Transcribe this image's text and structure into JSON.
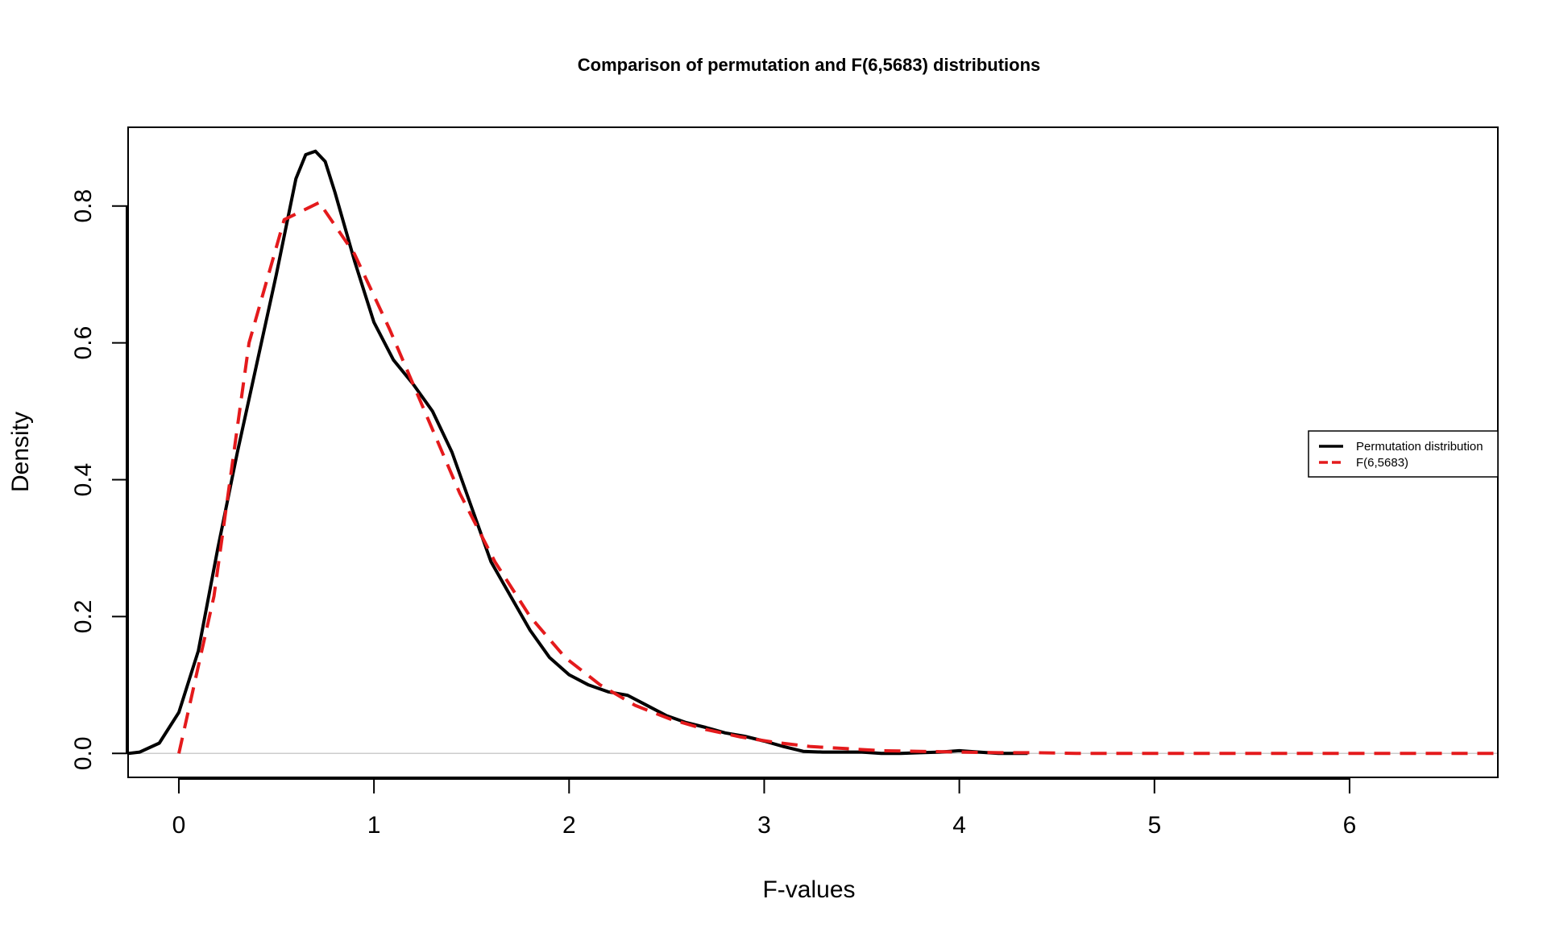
{
  "chart_data": {
    "type": "line",
    "title": "Comparison of permutation and F(6,5683) distributions",
    "xlabel": "F-values",
    "ylabel": "Density",
    "xlim": [
      -0.26,
      6.76
    ],
    "ylim": [
      -0.035,
      0.915
    ],
    "xticks": [
      0,
      1,
      2,
      3,
      4,
      5,
      6
    ],
    "xtick_labels": [
      "0",
      "1",
      "2",
      "3",
      "4",
      "5",
      "6"
    ],
    "yticks": [
      0.0,
      0.2,
      0.4,
      0.6,
      0.8
    ],
    "ytick_labels": [
      "0.0",
      "0.2",
      "0.4",
      "0.6",
      "0.8"
    ],
    "grid": false,
    "baseline": 0,
    "legend_position": "right",
    "series": [
      {
        "name": "Permutation distribution",
        "color": "#000000",
        "dash": "solid",
        "x": [
          -0.26,
          -0.2,
          -0.1,
          0,
          0.1,
          0.2,
          0.3,
          0.4,
          0.5,
          0.6,
          0.65,
          0.7,
          0.75,
          0.8,
          0.9,
          1.0,
          1.1,
          1.2,
          1.3,
          1.4,
          1.5,
          1.6,
          1.7,
          1.8,
          1.9,
          2.0,
          2.1,
          2.2,
          2.3,
          2.4,
          2.5,
          2.6,
          2.7,
          2.8,
          2.9,
          3.0,
          3.1,
          3.2,
          3.3,
          3.4,
          3.5,
          3.6,
          3.7,
          3.8,
          3.9,
          4.0,
          4.1,
          4.2,
          4.3,
          4.35
        ],
        "y": [
          0.0,
          0.002,
          0.015,
          0.06,
          0.15,
          0.3,
          0.44,
          0.57,
          0.7,
          0.84,
          0.875,
          0.88,
          0.865,
          0.82,
          0.72,
          0.63,
          0.575,
          0.54,
          0.5,
          0.44,
          0.36,
          0.28,
          0.23,
          0.18,
          0.14,
          0.115,
          0.1,
          0.09,
          0.085,
          0.07,
          0.055,
          0.045,
          0.038,
          0.03,
          0.025,
          0.018,
          0.01,
          0.003,
          0.002,
          0.002,
          0.002,
          0.0,
          0.0,
          0.001,
          0.002,
          0.004,
          0.002,
          0.0,
          0.0,
          0.0
        ]
      },
      {
        "name": "F(6,5683)",
        "color": "#e41a1c",
        "dash": "dashed",
        "x": [
          0,
          0.18,
          0.36,
          0.54,
          0.72,
          0.9,
          1.08,
          1.26,
          1.44,
          1.62,
          1.8,
          1.98,
          2.16,
          2.34,
          2.52,
          2.7,
          2.88,
          3.06,
          3.24,
          3.42,
          3.6,
          3.8,
          4.0,
          4.2,
          4.4,
          4.6,
          5.0,
          5.5,
          6.0,
          6.5,
          6.76
        ],
        "y": [
          0.0,
          0.23,
          0.6,
          0.78,
          0.805,
          0.73,
          0.62,
          0.5,
          0.38,
          0.28,
          0.2,
          0.14,
          0.1,
          0.07,
          0.05,
          0.035,
          0.024,
          0.016,
          0.01,
          0.007,
          0.004,
          0.003,
          0.002,
          0.001,
          0.001,
          0.0,
          0.0,
          0.0,
          0.0,
          0.0,
          0.0
        ]
      }
    ]
  }
}
